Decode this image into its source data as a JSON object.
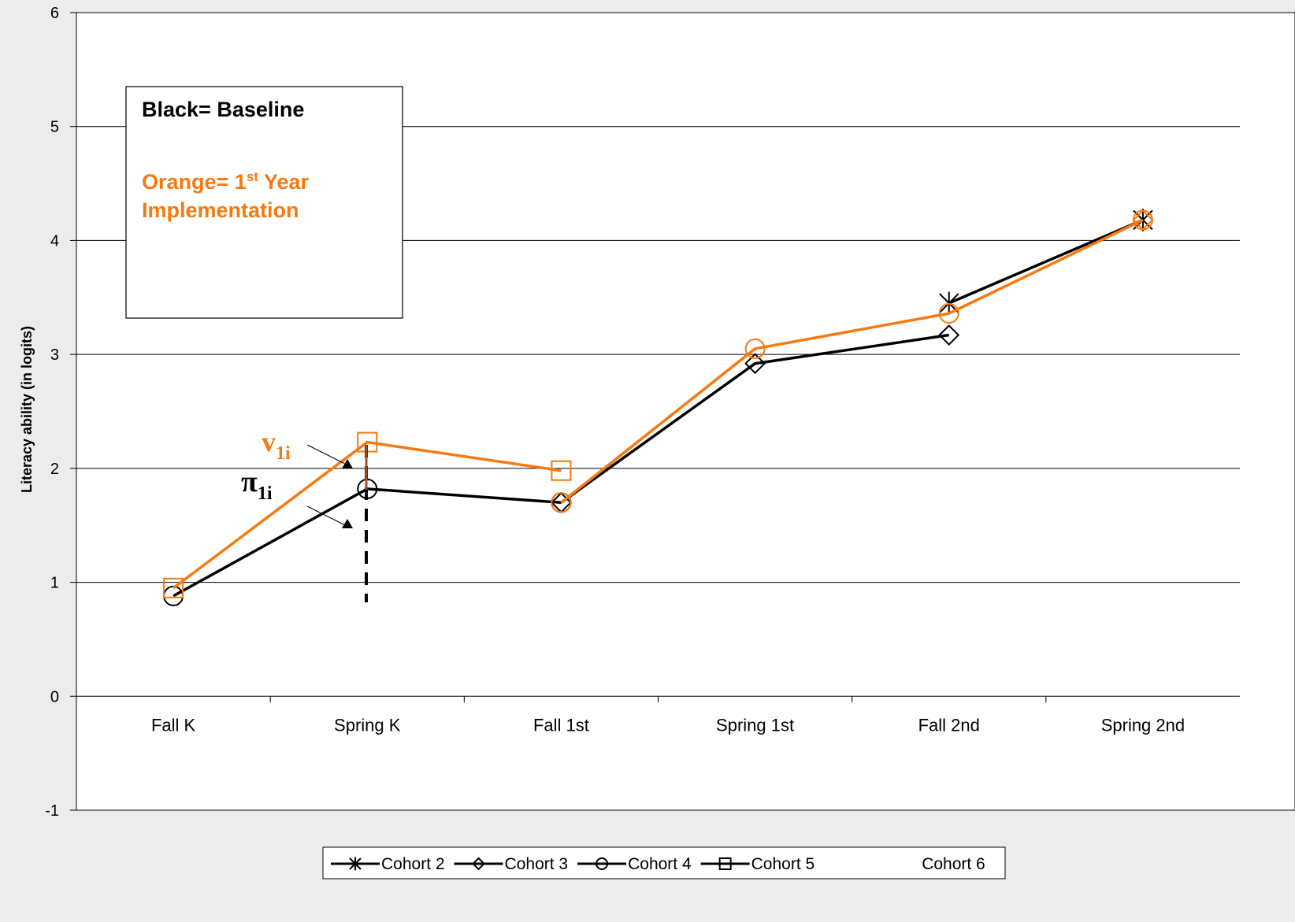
{
  "chart_data": {
    "type": "line",
    "y_label": "Literacy ability (in logits)",
    "categories": [
      "Fall K",
      "Spring K",
      "Fall 1st",
      "Spring 1st",
      "Fall 2nd",
      "Spring 2nd"
    ],
    "ylim": [
      -1,
      6
    ],
    "yticks": [
      -1,
      0,
      1,
      2,
      3,
      4,
      5,
      6
    ],
    "grid": true,
    "legend": [
      {
        "name": "Cohort 2",
        "marker": "asterisk"
      },
      {
        "name": "Cohort 3",
        "marker": "diamond"
      },
      {
        "name": "Cohort 4",
        "marker": "circle"
      },
      {
        "name": "Cohort 5",
        "marker": "square"
      },
      {
        "name": "Cohort 6",
        "marker": "none"
      }
    ],
    "series": [
      {
        "legend": 2,
        "color": "#000000",
        "values": [
          0.88,
          1.82,
          1.7,
          null,
          null,
          null
        ]
      },
      {
        "legend": 1,
        "color": "#000000",
        "values": [
          null,
          null,
          1.7,
          2.92,
          3.17,
          null
        ]
      },
      {
        "legend": 0,
        "color": "#000000",
        "values": [
          null,
          null,
          null,
          null,
          3.45,
          4.18
        ]
      },
      {
        "legend": 3,
        "color": "#f7790f",
        "values": [
          0.95,
          2.23,
          1.98,
          null,
          null,
          null
        ]
      },
      {
        "legend": 2,
        "color": "#f7790f",
        "values": [
          null,
          null,
          1.7,
          3.05,
          3.36,
          4.18
        ]
      },
      {
        "legend": 1,
        "color": "#f7790f",
        "values": [
          null,
          null,
          null,
          null,
          null,
          4.18
        ]
      }
    ],
    "annotations": {
      "black": "Black= Baseline",
      "orange_pre": "Orange= 1",
      "orange_sup": "st",
      "orange_post": " Year",
      "orange_line2": "Implementation",
      "v": "v",
      "v_sub": "1i",
      "pi": "π",
      "pi_sub": "1i"
    }
  }
}
